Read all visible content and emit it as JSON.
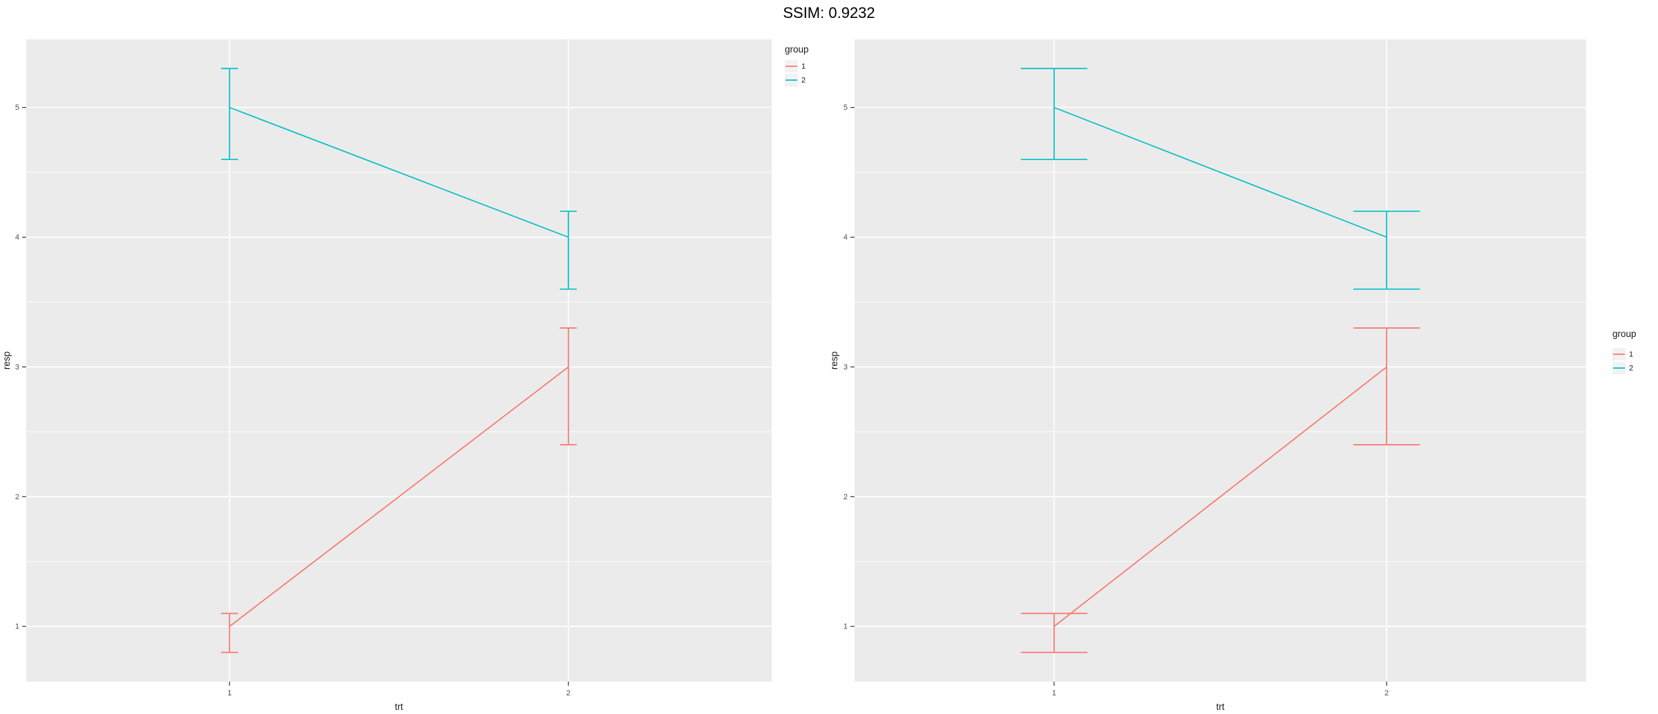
{
  "title": "SSIM: 0.9232",
  "style": {
    "panel_bg": "#EBEBEB",
    "grid_color": "#FFFFFF",
    "tick_color": "#333333",
    "tick_label_color": "#4D4D4D",
    "axis_title_color": "#1A1A1A",
    "legend_text_color": "#1A1A1A",
    "legend_key_bg": "#F2F2F2",
    "group1_color": "#F8766D",
    "group2_color": "#00BFC4"
  },
  "chart_data": [
    {
      "type": "line",
      "title": "",
      "xlabel": "trt",
      "ylabel": "resp",
      "x_categories": [
        "1",
        "2"
      ],
      "yticks": [
        1,
        2,
        3,
        4,
        5
      ],
      "yticks_minor": [
        1.5,
        2.5,
        3.5,
        4.5
      ],
      "ylim": [
        0.575,
        5.525
      ],
      "grid": true,
      "panel_bg": "#EBEBEB",
      "errorbar_width": 0.05,
      "legend": {
        "title": "group",
        "position": "top-right",
        "entries": [
          "1",
          "2"
        ]
      },
      "series": [
        {
          "name": "1",
          "color": "#F8766D",
          "x": [
            "1",
            "2"
          ],
          "values": [
            1,
            3
          ],
          "lower": [
            0.8,
            2.4
          ],
          "upper": [
            1.1,
            3.3
          ]
        },
        {
          "name": "2",
          "color": "#00BFC4",
          "x": [
            "1",
            "2"
          ],
          "values": [
            5,
            4
          ],
          "lower": [
            4.6,
            3.6
          ],
          "upper": [
            5.3,
            4.2
          ]
        }
      ]
    },
    {
      "type": "line",
      "title": "",
      "xlabel": "trt",
      "ylabel": "resp",
      "x_categories": [
        "1",
        "2"
      ],
      "yticks": [
        1,
        2,
        3,
        4,
        5
      ],
      "yticks_minor": [
        1.5,
        2.5,
        3.5,
        4.5
      ],
      "ylim": [
        0.575,
        5.525
      ],
      "grid": true,
      "panel_bg": "#EBEBEB",
      "errorbar_width": 0.2,
      "legend": {
        "title": "group",
        "position": "right-middle",
        "entries": [
          "1",
          "2"
        ]
      },
      "series": [
        {
          "name": "1",
          "color": "#F8766D",
          "x": [
            "1",
            "2"
          ],
          "values": [
            1,
            3
          ],
          "lower": [
            0.8,
            2.4
          ],
          "upper": [
            1.1,
            3.3
          ]
        },
        {
          "name": "2",
          "color": "#00BFC4",
          "x": [
            "1",
            "2"
          ],
          "values": [
            5,
            4
          ],
          "lower": [
            4.6,
            3.6
          ],
          "upper": [
            5.3,
            4.2
          ]
        }
      ]
    }
  ]
}
